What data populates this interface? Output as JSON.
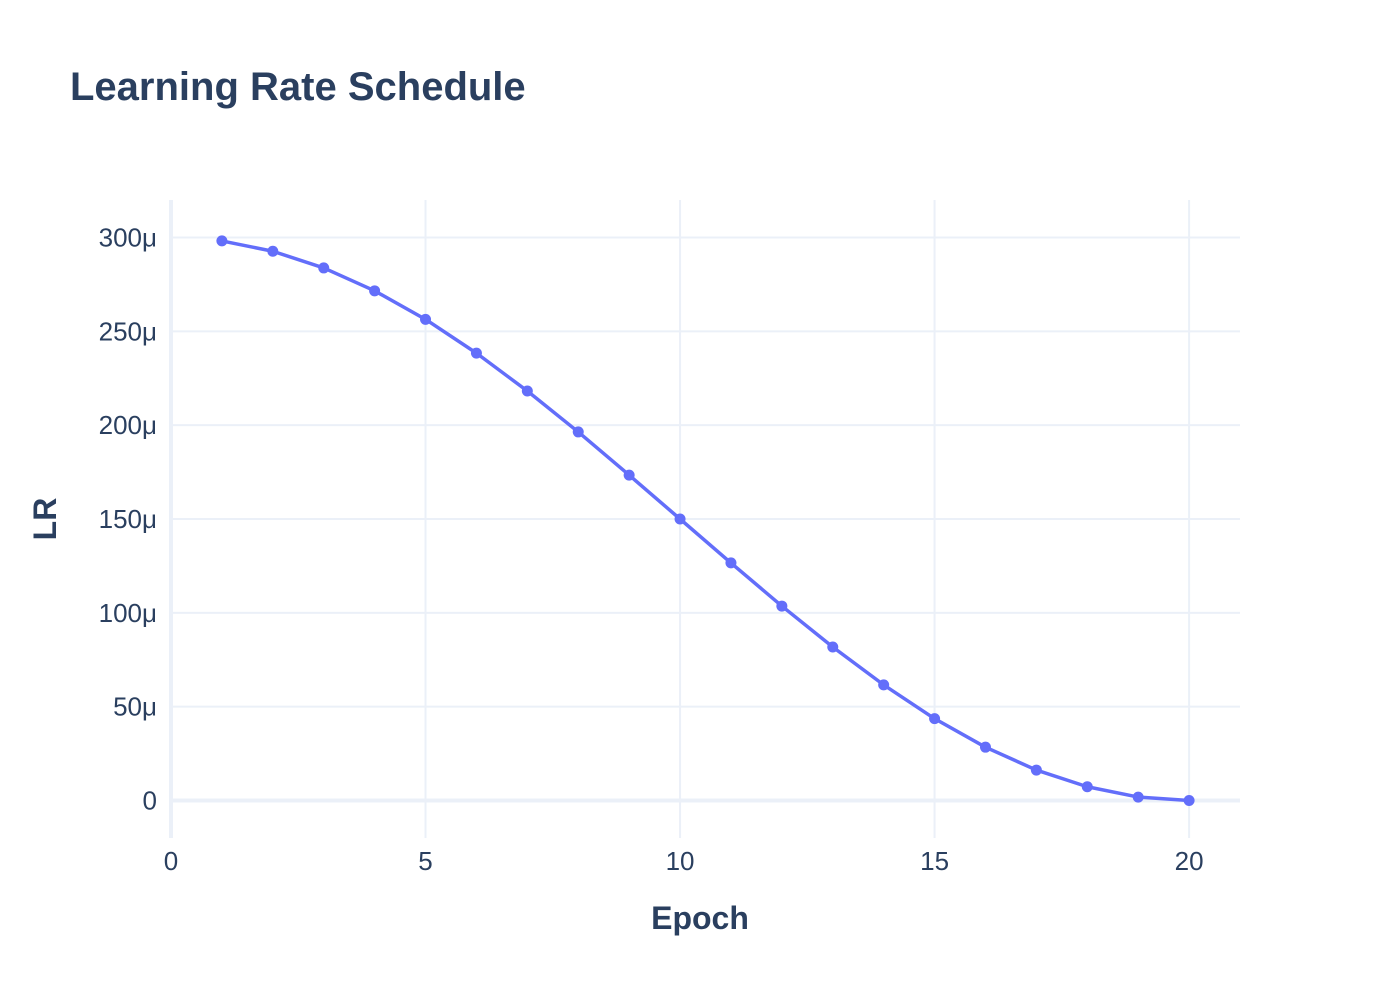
{
  "chart_data": {
    "type": "line",
    "title": "Learning Rate Schedule",
    "xlabel": "Epoch",
    "ylabel": "LR",
    "xlim": [
      0,
      21
    ],
    "ylim": [
      -20,
      320
    ],
    "x_ticks": [
      0,
      5,
      10,
      15,
      20
    ],
    "x_tick_labels": [
      "0",
      "5",
      "10",
      "15",
      "20"
    ],
    "y_ticks": [
      0,
      50,
      100,
      150,
      200,
      250,
      300
    ],
    "y_tick_labels": [
      "0",
      "50μ",
      "100μ",
      "150μ",
      "200μ",
      "250μ",
      "300μ"
    ],
    "y_unit": "μ",
    "grid": true,
    "legend": false,
    "series": [
      {
        "color": "#636efa",
        "x": [
          1,
          2,
          3,
          4,
          5,
          6,
          7,
          8,
          9,
          10,
          11,
          12,
          13,
          14,
          15,
          16,
          17,
          18,
          19,
          20
        ],
        "y": [
          298.2,
          292.7,
          283.8,
          271.6,
          256.4,
          238.4,
          218.2,
          196.4,
          173.4,
          150.0,
          126.6,
          103.6,
          81.8,
          61.6,
          43.6,
          28.4,
          16.2,
          7.3,
          1.8,
          0.0
        ]
      }
    ]
  }
}
